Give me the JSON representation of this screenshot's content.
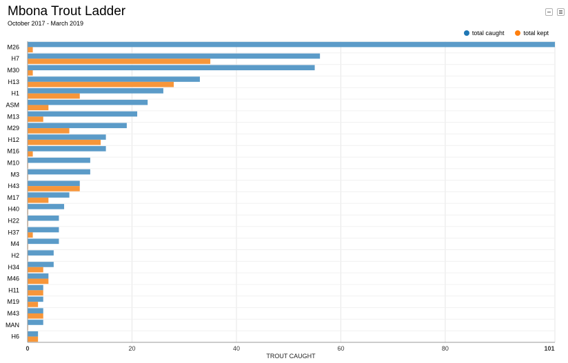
{
  "header": {
    "title": "Mbona Trout Ladder",
    "subtitle": "October 2017 - March 2019"
  },
  "colors": {
    "caught": "#5b9bc8",
    "kept": "#f7963a",
    "grid": "#e6e6e6",
    "axis": "#999999"
  },
  "icons": {
    "collapse": "minus-box-icon",
    "menu": "hamburger-menu-icon"
  },
  "chart_data": {
    "type": "bar",
    "orientation": "horizontal",
    "title": "Mbona Trout Ladder",
    "subtitle": "October 2017 - March 2019",
    "xlabel": "TROUT CAUGHT",
    "ylabel": "",
    "xlim": [
      0,
      101
    ],
    "x_ticks": [
      0,
      20,
      40,
      60,
      80,
      101
    ],
    "grid": true,
    "legend_position": "top-right",
    "categories": [
      "M26",
      "H7",
      "M30",
      "H13",
      "H1",
      "ASM",
      "M13",
      "M29",
      "H12",
      "M16",
      "M10",
      "M3",
      "H43",
      "M17",
      "H40",
      "H22",
      "H37",
      "M4",
      "H2",
      "H34",
      "M46",
      "H11",
      "M19",
      "M43",
      "MAN",
      "H6"
    ],
    "series": [
      {
        "name": "total caught",
        "color": "#5b9bc8",
        "values": [
          101,
          56,
          55,
          33,
          26,
          23,
          21,
          19,
          15,
          15,
          12,
          12,
          10,
          8,
          7,
          6,
          6,
          6,
          5,
          5,
          4,
          3,
          3,
          3,
          3,
          2
        ]
      },
      {
        "name": "total kept",
        "color": "#f7963a",
        "values": [
          1,
          35,
          1,
          28,
          10,
          4,
          3,
          8,
          14,
          1,
          0,
          0,
          10,
          4,
          0,
          0,
          1,
          0,
          0,
          3,
          4,
          3,
          2,
          3,
          0,
          2
        ]
      }
    ]
  }
}
